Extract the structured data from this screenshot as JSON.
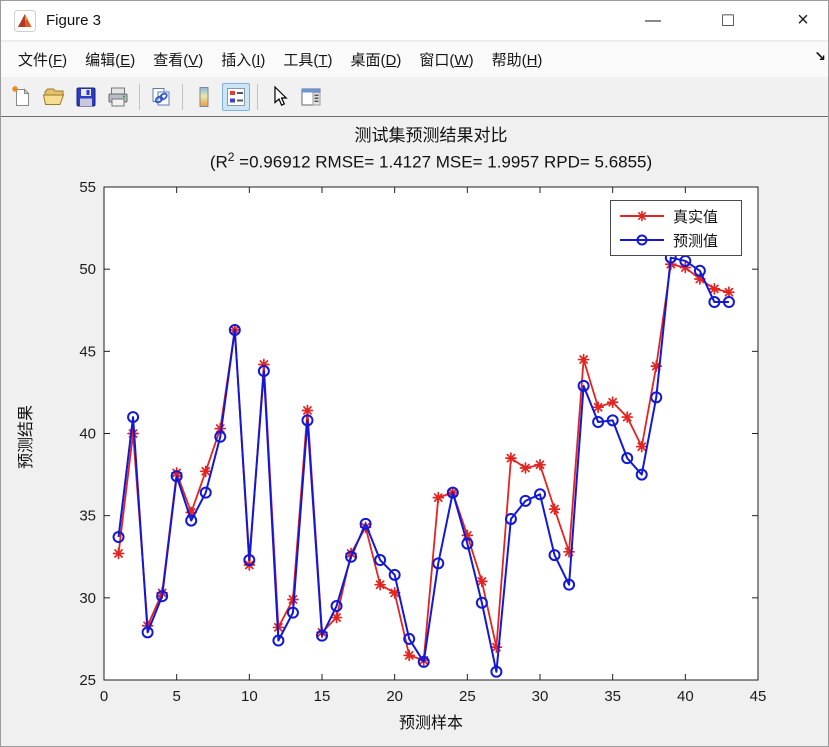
{
  "window": {
    "title": "Figure 3",
    "controls": {
      "minimize": "—",
      "maximize": "□",
      "close": "×"
    }
  },
  "menu": {
    "items": [
      {
        "id": "file",
        "label": "文件(F)"
      },
      {
        "id": "edit",
        "label": "编辑(E)"
      },
      {
        "id": "view",
        "label": "查看(V)"
      },
      {
        "id": "insert",
        "label": "插入(I)"
      },
      {
        "id": "tools",
        "label": "工具(T)"
      },
      {
        "id": "desktop",
        "label": "桌面(D)"
      },
      {
        "id": "window",
        "label": "窗口(W)"
      },
      {
        "id": "help",
        "label": "帮助(H)"
      }
    ],
    "overflow_arrow": "↘"
  },
  "toolbar": {
    "buttons": [
      {
        "id": "new-figure",
        "active": false
      },
      {
        "id": "open-file",
        "active": false
      },
      {
        "id": "save-figure",
        "active": false
      },
      {
        "id": "print-figure",
        "active": false
      },
      {
        "id": "link-plot",
        "active": false
      },
      {
        "id": "insert-colorbar",
        "active": false
      },
      {
        "id": "insert-legend",
        "active": true
      },
      {
        "id": "edit-plot",
        "active": false
      },
      {
        "id": "property-inspector",
        "active": false
      }
    ]
  },
  "chart_data": {
    "type": "line",
    "title": "测试集预测结果对比",
    "subtitle_parts": {
      "pre": "(R",
      "sup": "2",
      "post": " =0.96912 RMSE= 1.4127 MSE= 1.9957 RPD= 5.6855)"
    },
    "xlabel": "预测样本",
    "ylabel": "预测结果",
    "xlim": [
      0,
      45
    ],
    "ylim": [
      25,
      55
    ],
    "xticks": [
      0,
      5,
      10,
      15,
      20,
      25,
      30,
      35,
      40,
      45
    ],
    "yticks": [
      25,
      30,
      35,
      40,
      45,
      50,
      55
    ],
    "grid": false,
    "legend_position": "top-right",
    "x": [
      1,
      2,
      3,
      4,
      5,
      6,
      7,
      8,
      9,
      10,
      11,
      12,
      13,
      14,
      15,
      16,
      17,
      18,
      19,
      20,
      21,
      22,
      23,
      24,
      25,
      26,
      27,
      28,
      29,
      30,
      31,
      32,
      33,
      34,
      35,
      36,
      37,
      38,
      39,
      40,
      41,
      42,
      43
    ],
    "series": [
      {
        "name": "真实值",
        "color": "#e32420",
        "marker": "asterisk",
        "values": [
          32.7,
          40.0,
          28.3,
          30.3,
          37.6,
          35.2,
          37.7,
          40.3,
          46.3,
          32.0,
          44.2,
          28.2,
          29.9,
          41.4,
          27.9,
          28.8,
          32.7,
          34.3,
          30.8,
          30.3,
          26.5,
          26.2,
          36.1,
          36.4,
          33.8,
          31.0,
          27.0,
          38.5,
          37.9,
          38.1,
          35.4,
          32.8,
          44.5,
          41.6,
          41.9,
          41.0,
          39.2,
          44.1,
          50.3,
          50.1,
          49.4,
          48.8,
          48.6
        ]
      },
      {
        "name": "预测值",
        "color": "#1318d6",
        "marker": "circle",
        "values": [
          33.7,
          41.0,
          27.9,
          30.1,
          37.4,
          34.7,
          36.4,
          39.8,
          46.3,
          32.3,
          43.8,
          27.4,
          29.1,
          40.8,
          27.7,
          29.5,
          32.5,
          34.5,
          32.3,
          31.4,
          27.5,
          26.1,
          32.1,
          36.4,
          33.3,
          29.7,
          25.5,
          34.8,
          35.9,
          36.3,
          32.6,
          30.8,
          42.9,
          40.7,
          40.8,
          38.5,
          37.5,
          42.2,
          50.7,
          50.5,
          49.9,
          48.0,
          48.0
        ]
      }
    ]
  },
  "colors": {
    "figure_bg": "#f0f0f0",
    "plot_bg": "#ffffff",
    "axis": "#1f1f1f",
    "toolbar_active_bg": "#cde6f7",
    "toolbar_active_border": "#7fb2dd"
  }
}
